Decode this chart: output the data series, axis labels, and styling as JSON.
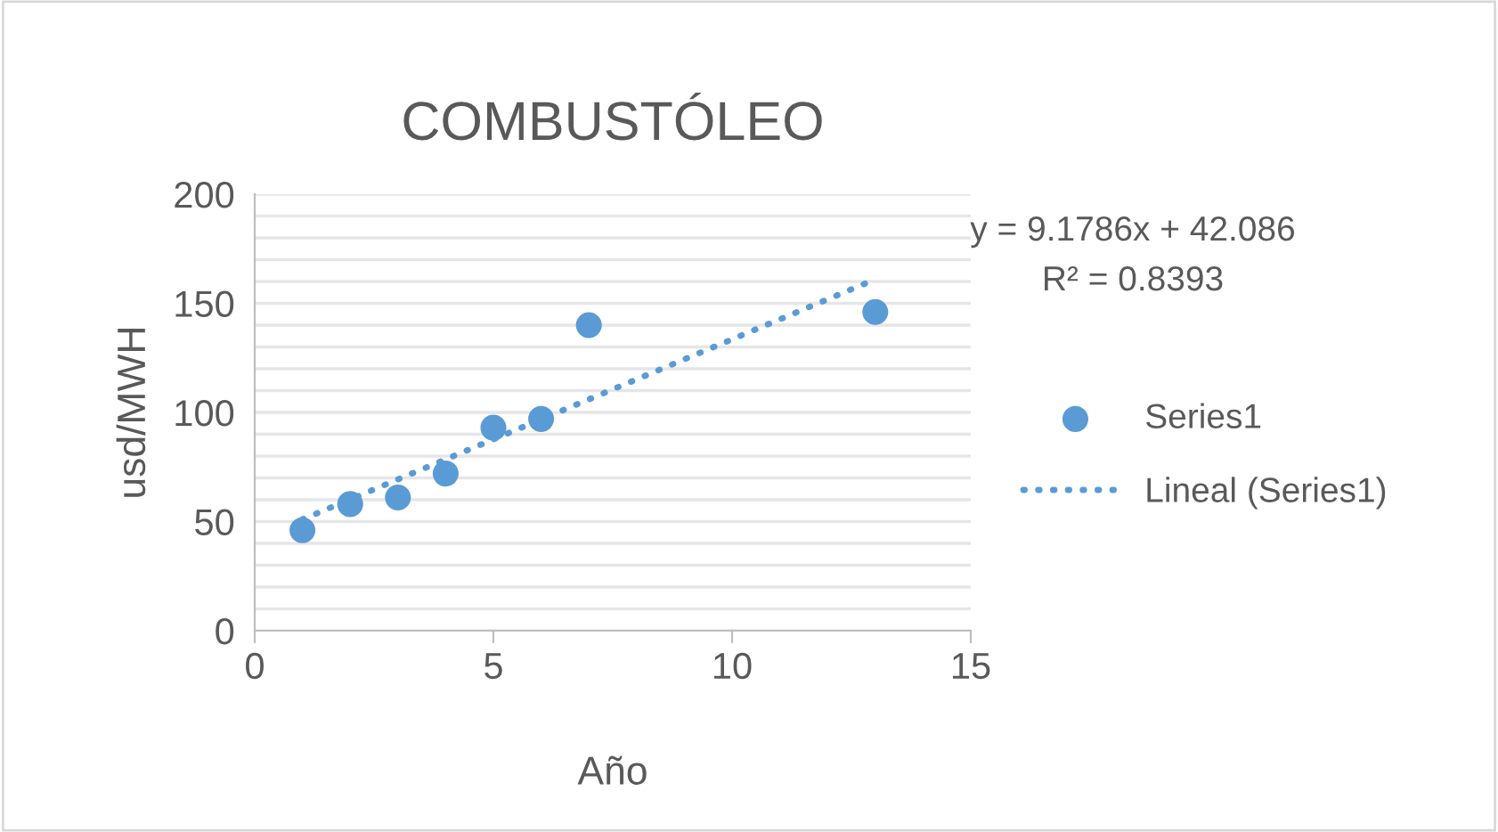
{
  "chart_data": {
    "type": "scatter",
    "title": "COMBUSTÓLEO",
    "xlabel": "Año",
    "ylabel": "usd/MWH",
    "annotations": [
      "y = 9.1786x + 42.086",
      "R² = 0.8393"
    ],
    "series": [
      {
        "name": "Series1",
        "color": "#5b9bd5",
        "marker": "circle",
        "x": [
          1,
          2,
          3,
          4,
          5,
          6,
          7,
          13
        ],
        "values": [
          46,
          58,
          61,
          72,
          93,
          97,
          140,
          146
        ]
      },
      {
        "name": "Lineal (Series1)",
        "type": "line",
        "color": "#5b9bd5",
        "line_style": "dotted",
        "marker": "none",
        "x": [
          1,
          13
        ],
        "values": [
          51,
          161
        ]
      }
    ],
    "xlim": [
      0,
      15
    ],
    "xticks": [
      0,
      5,
      10,
      15
    ],
    "ylim": [
      0,
      200
    ],
    "yticks": [
      0,
      {
        "value": 10,
        "label": null
      },
      {
        "value": 20,
        "label": null
      },
      {
        "value": 30,
        "label": null
      },
      {
        "value": 40,
        "label": null
      },
      50,
      {
        "value": 60,
        "label": null
      },
      {
        "value": 70,
        "label": null
      },
      {
        "value": 80,
        "label": null
      },
      {
        "value": 90,
        "label": null
      },
      100,
      {
        "value": 110,
        "label": null
      },
      {
        "value": 120,
        "label": null
      },
      {
        "value": 130,
        "label": null
      },
      {
        "value": 140,
        "label": null
      },
      150,
      {
        "value": 160,
        "label": null
      },
      {
        "value": 170,
        "label": null
      },
      {
        "value": 180,
        "label": null
      },
      {
        "value": 190,
        "label": null
      },
      200
    ],
    "grid": "y",
    "legend": "right"
  }
}
